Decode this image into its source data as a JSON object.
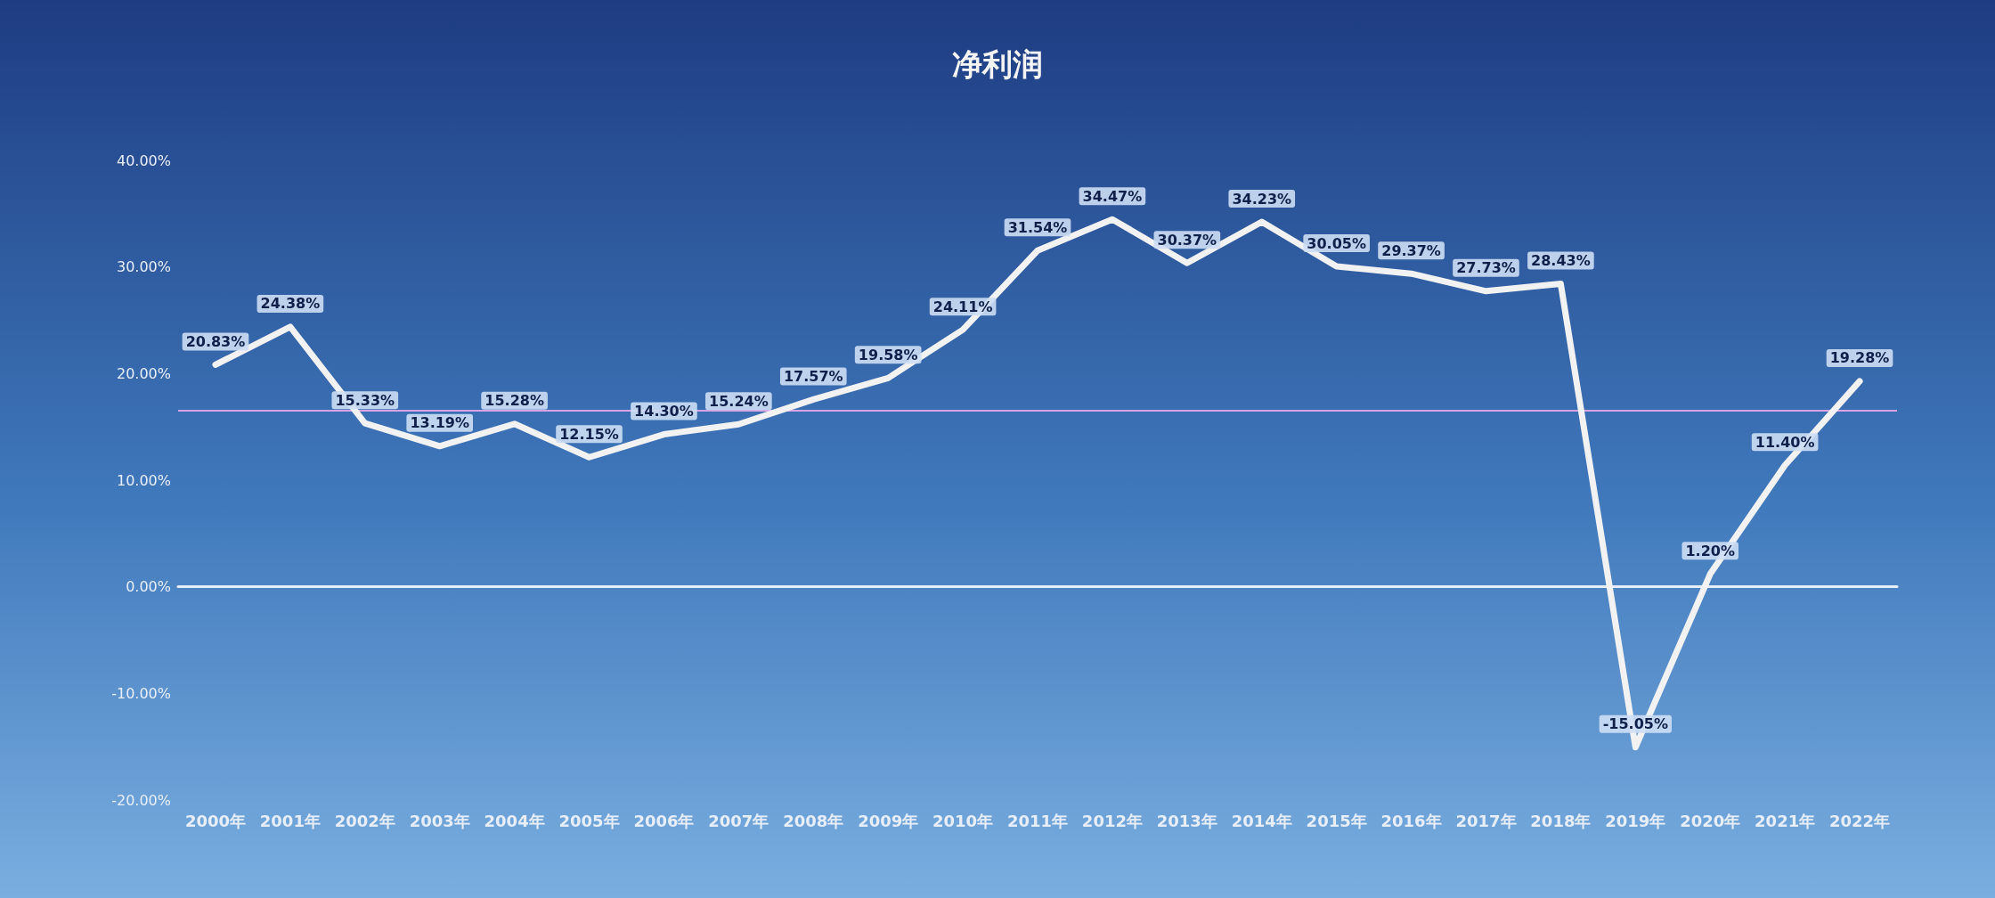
{
  "chart_data": {
    "type": "line",
    "title": "净利润",
    "categories": [
      "2000年",
      "2001年",
      "2002年",
      "2003年",
      "2004年",
      "2005年",
      "2006年",
      "2007年",
      "2008年",
      "2009年",
      "2010年",
      "2011年",
      "2012年",
      "2013年",
      "2014年",
      "2015年",
      "2016年",
      "2017年",
      "2018年",
      "2019年",
      "2020年",
      "2021年",
      "2022年"
    ],
    "series": [
      {
        "color": "#f2f2f2",
        "values": [
          20.83,
          24.38,
          15.33,
          13.19,
          15.28,
          12.15,
          14.3,
          15.24,
          17.57,
          19.58,
          24.11,
          31.54,
          34.47,
          30.37,
          34.23,
          30.05,
          29.37,
          27.73,
          28.43,
          -15.05,
          1.2,
          11.4,
          19.28
        ],
        "value_labels": [
          "20.83%",
          "24.38%",
          "15.33%",
          "13.19%",
          "15.28%",
          "12.15%",
          "14.30%",
          "15.24%",
          "17.57%",
          "19.58%",
          "24.11%",
          "31.54%",
          "34.47%",
          "30.37%",
          "34.23%",
          "30.05%",
          "29.37%",
          "27.73%",
          "28.43%",
          "-15.05%",
          "1.20%",
          "11.40%",
          "19.28%"
        ]
      }
    ],
    "ylim": [
      -20,
      40
    ],
    "yticks": [
      {
        "value": -20,
        "label": "-20.00%"
      },
      {
        "value": -10,
        "label": "-10.00%"
      },
      {
        "value": 0,
        "label": "0.00%"
      },
      {
        "value": 10,
        "label": "10.00%"
      },
      {
        "value": 20,
        "label": "20.00%"
      },
      {
        "value": 30,
        "label": "30.00%"
      },
      {
        "value": 40,
        "label": "40.00%"
      }
    ],
    "ref_lines": [
      {
        "axis": "y",
        "value": 16.5,
        "color": "#d9a3e6"
      }
    ],
    "marker": "none",
    "line_style": "solid"
  }
}
